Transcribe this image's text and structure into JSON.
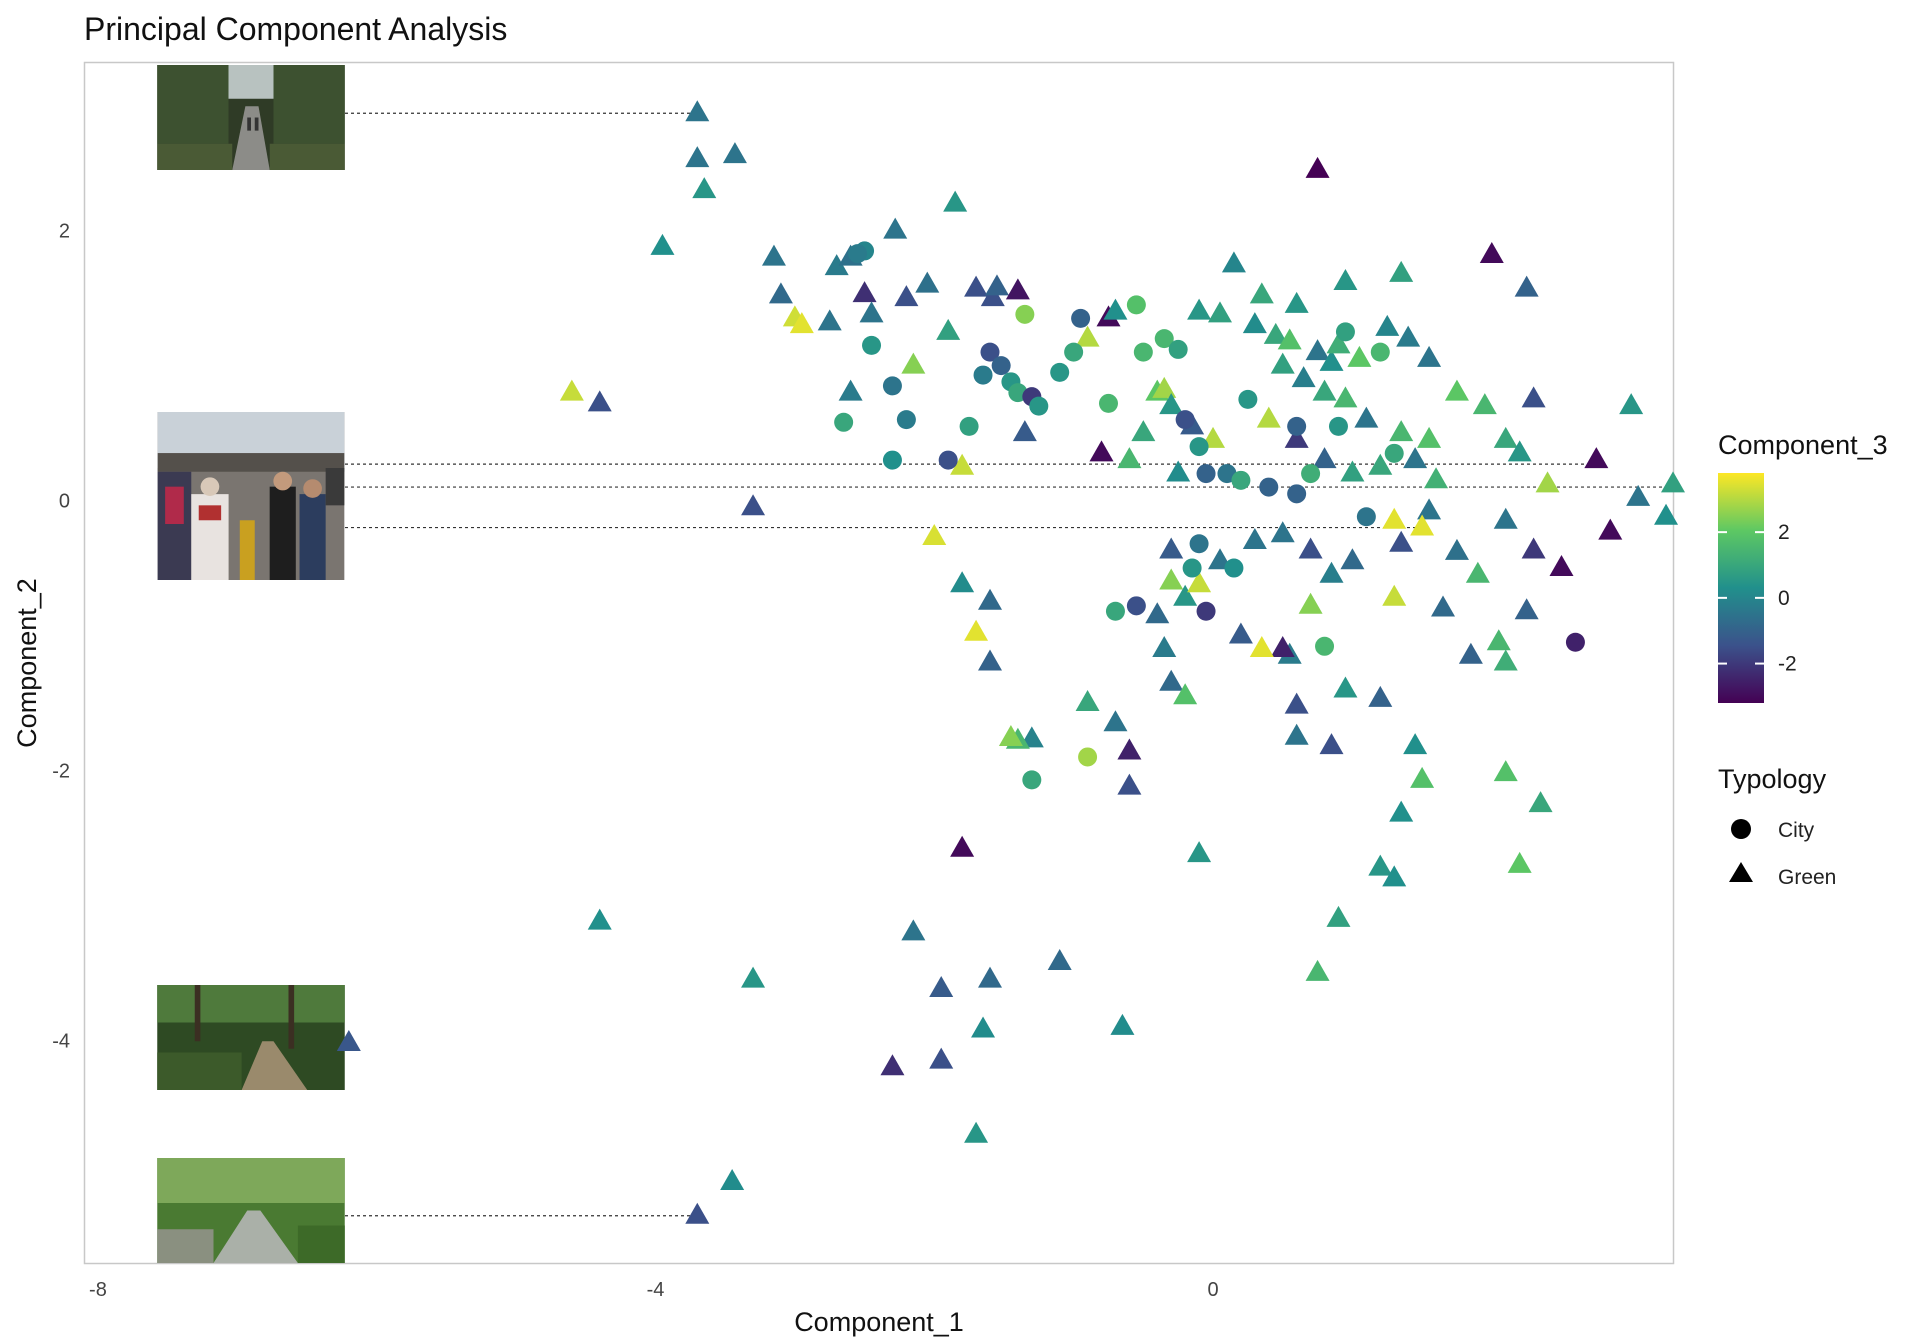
{
  "chart_data": {
    "type": "scatter",
    "title": "Principal Component Analysis",
    "xlabel": "Component_1",
    "ylabel": "Component_2",
    "xlim": [
      -8.1,
      3.3
    ],
    "ylim": [
      -5.65,
      3.25
    ],
    "xticks": [
      -8,
      -4,
      0
    ],
    "yticks": [
      2,
      0,
      -2,
      -4
    ],
    "xtick_labels": [
      "-8",
      "-4",
      "0"
    ],
    "ytick_labels": [
      "2",
      "0",
      "-2",
      "-4"
    ],
    "grid": false,
    "color_legend": {
      "title": "Component_3",
      "range": [
        -3.2,
        3.8
      ],
      "ticks": [
        2,
        0,
        -2
      ],
      "tick_labels": [
        "2",
        "0",
        "-2"
      ],
      "palette": "viridis"
    },
    "shape_legend": {
      "title": "Typology",
      "entries": [
        {
          "label": "City",
          "shape": "circle"
        },
        {
          "label": "Green",
          "shape": "triangle"
        }
      ]
    },
    "thumbnails": [
      {
        "name": "tree-lined-path-photo",
        "y_value": 2.87,
        "x_end": -3.7
      },
      {
        "name": "street-market-photo",
        "y_value": 0.27,
        "x_end": 2.8
      },
      {
        "name": "street-market-photo",
        "y_value": 0.1,
        "x_end": 3.3
      },
      {
        "name": "street-market-photo",
        "y_value": -0.2,
        "x_end": 1.5
      },
      {
        "name": "forest-trail-photo",
        "y_value": -4.02,
        "x_end": -6.2
      },
      {
        "name": "park-walkway-photo",
        "y_value": -5.3,
        "x_end": -3.7
      }
    ],
    "series": [
      {
        "name": "Green",
        "shape": "triangle",
        "points": [
          [
            -3.7,
            2.87,
            -0.5
          ],
          [
            -3.7,
            2.53,
            -0.5
          ],
          [
            -3.43,
            2.56,
            -0.5
          ],
          [
            -3.65,
            2.3,
            0.5
          ],
          [
            -3.95,
            1.88,
            0.3
          ],
          [
            -4.4,
            0.72,
            -1.5
          ],
          [
            -4.6,
            0.8,
            3.2
          ],
          [
            -3.3,
            -0.05,
            -1.5
          ],
          [
            -3.15,
            1.8,
            -0.5
          ],
          [
            -3.1,
            1.52,
            -0.8
          ],
          [
            -3.0,
            1.35,
            3.3
          ],
          [
            -2.95,
            1.3,
            3.5
          ],
          [
            -2.7,
            1.73,
            -0.3
          ],
          [
            -2.75,
            1.32,
            -0.5
          ],
          [
            -2.6,
            1.8,
            -0.6
          ],
          [
            -2.5,
            1.53,
            -2.2
          ],
          [
            -2.45,
            1.38,
            -0.5
          ],
          [
            -2.28,
            2.0,
            -0.5
          ],
          [
            -2.2,
            1.5,
            -1.5
          ],
          [
            -2.05,
            1.6,
            -0.6
          ],
          [
            -1.9,
            1.25,
            0.8
          ],
          [
            -2.15,
            1.0,
            2.5
          ],
          [
            -1.85,
            2.2,
            0.5
          ],
          [
            -1.7,
            1.57,
            -1.5
          ],
          [
            -1.58,
            1.5,
            -1.5
          ],
          [
            -1.55,
            1.58,
            -1.0
          ],
          [
            -1.4,
            1.55,
            -2.8
          ],
          [
            -2.6,
            0.8,
            -0.3
          ],
          [
            -1.35,
            0.5,
            -1.2
          ],
          [
            -1.8,
            0.25,
            3.2
          ],
          [
            -2.0,
            -0.27,
            3.4
          ],
          [
            -1.8,
            -0.62,
            0.2
          ],
          [
            -1.6,
            -0.75,
            -0.8
          ],
          [
            -1.7,
            -0.98,
            3.5
          ],
          [
            -1.6,
            -1.2,
            -1.0
          ],
          [
            -1.3,
            -1.77,
            -0.1
          ],
          [
            -1.4,
            -1.78,
            1.5
          ],
          [
            -1.45,
            -1.76,
            2.5
          ],
          [
            -0.9,
            -1.5,
            1.0
          ],
          [
            -0.7,
            -1.65,
            -0.5
          ],
          [
            -0.6,
            -1.86,
            -2.5
          ],
          [
            -0.6,
            -2.12,
            -1.5
          ],
          [
            -0.3,
            -1.35,
            -0.8
          ],
          [
            -0.2,
            -1.45,
            1.8
          ],
          [
            -1.8,
            -2.58,
            -3.0
          ],
          [
            -0.1,
            -2.62,
            0.5
          ],
          [
            -4.4,
            -3.12,
            0.3
          ],
          [
            -2.15,
            -3.2,
            -0.5
          ],
          [
            -1.95,
            -3.62,
            -1.2
          ],
          [
            -1.6,
            -3.55,
            -0.8
          ],
          [
            -1.65,
            -3.92,
            0.2
          ],
          [
            -1.95,
            -4.15,
            -1.5
          ],
          [
            -2.3,
            -4.2,
            -2.2
          ],
          [
            -1.1,
            -3.42,
            -0.8
          ],
          [
            -0.65,
            -3.9,
            0.2
          ],
          [
            -3.3,
            -3.55,
            0.5
          ],
          [
            -3.45,
            -5.05,
            0.2
          ],
          [
            -3.7,
            -5.3,
            -1.5
          ],
          [
            -1.7,
            -4.7,
            0.5
          ],
          [
            -6.2,
            -4.02,
            -1.3
          ],
          [
            -0.75,
            1.35,
            -3.0
          ],
          [
            -0.9,
            1.2,
            3.0
          ],
          [
            -0.7,
            1.4,
            0.3
          ],
          [
            -0.4,
            0.8,
            2.0
          ],
          [
            -0.35,
            0.82,
            2.8
          ],
          [
            -0.5,
            0.5,
            1.0
          ],
          [
            -0.3,
            0.7,
            0.5
          ],
          [
            -0.25,
            0.2,
            0.2
          ],
          [
            -0.15,
            0.55,
            -1.2
          ],
          [
            0.0,
            0.45,
            3.0
          ],
          [
            -0.8,
            0.35,
            -3.0
          ],
          [
            -0.6,
            0.3,
            1.5
          ],
          [
            0.15,
            1.75,
            0.0
          ],
          [
            -0.1,
            1.4,
            0.5
          ],
          [
            0.05,
            1.38,
            0.8
          ],
          [
            0.35,
            1.52,
            1.0
          ],
          [
            0.6,
            1.45,
            0.5
          ],
          [
            0.95,
            1.62,
            0.5
          ],
          [
            1.35,
            1.68,
            0.8
          ],
          [
            0.3,
            1.3,
            0.2
          ],
          [
            0.45,
            1.22,
            1.0
          ],
          [
            0.55,
            1.18,
            1.8
          ],
          [
            0.75,
            1.1,
            -0.5
          ],
          [
            0.85,
            1.02,
            0.3
          ],
          [
            0.9,
            1.15,
            1.2
          ],
          [
            1.05,
            1.05,
            2.0
          ],
          [
            1.25,
            1.28,
            0.0
          ],
          [
            1.4,
            1.2,
            -0.3
          ],
          [
            1.55,
            1.05,
            -0.5
          ],
          [
            0.5,
            1.0,
            0.8
          ],
          [
            0.65,
            0.9,
            -0.2
          ],
          [
            0.8,
            0.8,
            1.0
          ],
          [
            0.95,
            0.75,
            1.5
          ],
          [
            1.1,
            0.6,
            -0.5
          ],
          [
            1.35,
            0.5,
            1.5
          ],
          [
            1.55,
            0.45,
            1.8
          ],
          [
            0.4,
            0.6,
            3.0
          ],
          [
            0.6,
            0.45,
            -2.0
          ],
          [
            0.8,
            0.3,
            -1.0
          ],
          [
            1.0,
            0.2,
            0.8
          ],
          [
            1.2,
            0.25,
            1.0
          ],
          [
            1.45,
            0.3,
            -0.5
          ],
          [
            1.6,
            0.15,
            1.3
          ],
          [
            1.75,
            0.8,
            2.0
          ],
          [
            1.95,
            0.7,
            1.5
          ],
          [
            2.1,
            0.45,
            1.0
          ],
          [
            2.3,
            0.75,
            -1.5
          ],
          [
            2.2,
            0.35,
            0.5
          ],
          [
            2.4,
            0.12,
            2.8
          ],
          [
            2.75,
            0.3,
            -3.0
          ],
          [
            3.0,
            0.7,
            0.5
          ],
          [
            3.3,
            0.12,
            0.8
          ],
          [
            3.05,
            0.02,
            -0.5
          ],
          [
            3.25,
            -0.12,
            0.3
          ],
          [
            2.85,
            -0.23,
            -3.0
          ],
          [
            2.0,
            1.82,
            -3.0
          ],
          [
            2.25,
            1.57,
            -1.0
          ],
          [
            0.75,
            2.45,
            -3.2
          ],
          [
            1.3,
            -0.15,
            3.5
          ],
          [
            1.35,
            -0.32,
            -1.5
          ],
          [
            1.55,
            -0.08,
            -0.5
          ],
          [
            1.75,
            -0.38,
            -0.6
          ],
          [
            1.9,
            -0.55,
            1.5
          ],
          [
            2.1,
            -0.15,
            -0.5
          ],
          [
            2.3,
            -0.37,
            -2.0
          ],
          [
            2.5,
            -0.5,
            -3.0
          ],
          [
            2.25,
            -0.82,
            -1.0
          ],
          [
            2.05,
            -1.05,
            1.5
          ],
          [
            2.1,
            -1.2,
            1.2
          ],
          [
            1.85,
            -1.15,
            -1.0
          ],
          [
            1.65,
            -0.8,
            -0.8
          ],
          [
            1.3,
            -0.72,
            3.2
          ],
          [
            1.2,
            -1.47,
            -1.0
          ],
          [
            0.95,
            -1.4,
            0.5
          ],
          [
            0.55,
            -1.15,
            -0.3
          ],
          [
            0.5,
            -1.1,
            -2.5
          ],
          [
            0.7,
            -0.78,
            2.5
          ],
          [
            0.35,
            -1.1,
            3.5
          ],
          [
            0.2,
            -1.0,
            -1.2
          ],
          [
            -0.3,
            -0.6,
            2.5
          ],
          [
            -0.2,
            -0.72,
            0.5
          ],
          [
            -0.1,
            -0.62,
            3.2
          ],
          [
            0.05,
            -0.45,
            -0.5
          ],
          [
            -0.3,
            -0.37,
            -1.2
          ],
          [
            -0.4,
            -0.85,
            -0.8
          ],
          [
            -0.35,
            -1.1,
            -0.3
          ],
          [
            0.3,
            -0.3,
            -0.5
          ],
          [
            0.5,
            -0.25,
            -0.5
          ],
          [
            0.7,
            -0.37,
            -1.5
          ],
          [
            0.85,
            -0.55,
            -0.2
          ],
          [
            1.0,
            -0.45,
            -0.8
          ],
          [
            0.6,
            -1.52,
            -1.5
          ],
          [
            0.6,
            -1.75,
            -0.5
          ],
          [
            0.85,
            -1.82,
            -1.5
          ],
          [
            1.45,
            -1.82,
            0.3
          ],
          [
            1.5,
            -2.07,
            1.8
          ],
          [
            1.35,
            -2.32,
            0.3
          ],
          [
            1.2,
            -2.72,
            0.5
          ],
          [
            1.3,
            -2.8,
            0.3
          ],
          [
            0.9,
            -3.1,
            0.8
          ],
          [
            0.75,
            -3.5,
            1.5
          ],
          [
            2.1,
            -2.02,
            1.8
          ],
          [
            2.35,
            -2.25,
            1.0
          ],
          [
            2.2,
            -2.7,
            2.0
          ],
          [
            1.5,
            -0.2,
            3.5
          ]
        ]
      },
      {
        "name": "City",
        "shape": "circle",
        "points": [
          [
            -2.5,
            1.85,
            0.0
          ],
          [
            -2.55,
            1.83,
            -0.3
          ],
          [
            -2.45,
            1.15,
            0.5
          ],
          [
            -2.3,
            0.85,
            -0.5
          ],
          [
            -2.3,
            0.3,
            0.3
          ],
          [
            -2.2,
            0.6,
            -0.3
          ],
          [
            -1.9,
            0.3,
            -1.5
          ],
          [
            -1.75,
            0.55,
            0.8
          ],
          [
            -1.65,
            0.93,
            -0.3
          ],
          [
            -1.6,
            1.1,
            -1.5
          ],
          [
            -1.52,
            1.0,
            -1.0
          ],
          [
            -1.45,
            0.88,
            0.5
          ],
          [
            -1.4,
            0.8,
            1.0
          ],
          [
            -1.3,
            0.77,
            -2.0
          ],
          [
            -1.25,
            0.7,
            0.5
          ],
          [
            -1.1,
            0.95,
            0.5
          ],
          [
            -1.0,
            1.1,
            1.0
          ],
          [
            -0.95,
            1.35,
            -1.0
          ],
          [
            -1.35,
            1.38,
            2.5
          ],
          [
            -0.75,
            0.72,
            1.5
          ],
          [
            -0.55,
            1.45,
            1.8
          ],
          [
            -0.5,
            1.1,
            1.5
          ],
          [
            -0.35,
            1.2,
            1.5
          ],
          [
            -0.25,
            1.12,
            0.8
          ],
          [
            -2.65,
            0.58,
            1.0
          ],
          [
            -0.2,
            0.6,
            -1.5
          ],
          [
            -0.1,
            0.4,
            0.5
          ],
          [
            -0.05,
            0.2,
            -1.0
          ],
          [
            0.1,
            0.2,
            -0.5
          ],
          [
            0.2,
            0.15,
            1.0
          ],
          [
            0.4,
            0.1,
            -1.0
          ],
          [
            0.6,
            0.05,
            -1.0
          ],
          [
            -0.1,
            -0.32,
            -0.5
          ],
          [
            -0.15,
            -0.5,
            0.5
          ],
          [
            0.15,
            -0.5,
            0.3
          ],
          [
            -0.55,
            -0.78,
            -1.5
          ],
          [
            -0.7,
            -0.82,
            1.0
          ],
          [
            -0.05,
            -0.82,
            -2.0
          ],
          [
            0.8,
            -1.08,
            1.5
          ],
          [
            1.1,
            -0.12,
            -0.5
          ],
          [
            2.6,
            -1.05,
            -2.5
          ],
          [
            -0.9,
            -1.9,
            2.8
          ],
          [
            -1.3,
            -2.07,
            1.0
          ],
          [
            0.95,
            1.25,
            0.8
          ],
          [
            1.2,
            1.1,
            1.5
          ],
          [
            1.3,
            0.35,
            1.0
          ],
          [
            0.25,
            0.75,
            0.5
          ],
          [
            0.6,
            0.55,
            -1.0
          ],
          [
            0.7,
            0.2,
            1.2
          ],
          [
            0.9,
            0.55,
            0.5
          ]
        ]
      }
    ]
  }
}
